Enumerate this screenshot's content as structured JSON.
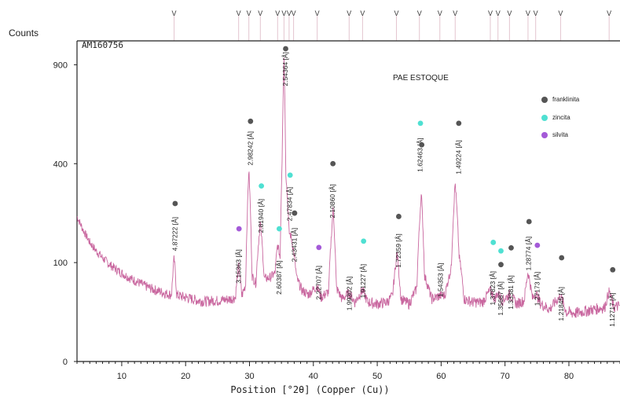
{
  "chart_data": {
    "type": "line",
    "ylabel": "Counts",
    "xlabel": "Position [°2θ] (Copper (Cu))",
    "sample_id": "AM160756",
    "title": "PAE ESTOQUE",
    "xlim": [
      3,
      88
    ],
    "ylim": [
      0,
      1000
    ],
    "y_scale": "sqrt",
    "x_ticks": [
      10,
      20,
      30,
      40,
      50,
      60,
      70,
      80
    ],
    "y_ticks": [
      0,
      100,
      400,
      900
    ],
    "colors": {
      "pattern": "#c9679f",
      "frame": "#222222",
      "franklinita": "#555555",
      "zincita": "#4fe0d2",
      "silvita": "#a45ad8"
    },
    "legend": [
      {
        "name": "franklinita",
        "marker": "franklinita"
      },
      {
        "name": "zincita",
        "marker": "zincita"
      },
      {
        "name": "silvita",
        "marker": "silvita"
      }
    ],
    "reference_ticks": [
      18.2,
      28.3,
      29.9,
      31.7,
      34.4,
      35.4,
      36.2,
      36.9,
      40.6,
      45.6,
      47.7,
      53.0,
      56.6,
      59.8,
      62.2,
      67.7,
      68.9,
      70.7,
      73.6,
      74.8,
      78.7,
      86.3
    ],
    "pattern_points": [
      [
        3,
        215
      ],
      [
        4,
        175
      ],
      [
        5,
        145
      ],
      [
        6,
        125
      ],
      [
        7,
        110
      ],
      [
        8,
        97
      ],
      [
        9,
        88
      ],
      [
        10,
        80
      ],
      [
        11,
        73
      ],
      [
        12,
        67
      ],
      [
        13,
        62
      ],
      [
        14,
        57
      ],
      [
        15,
        53
      ],
      [
        16,
        50
      ],
      [
        17,
        47
      ],
      [
        17.8,
        46
      ],
      [
        18.2,
        110
      ],
      [
        18.6,
        46
      ],
      [
        19,
        44
      ],
      [
        20,
        42
      ],
      [
        21,
        40
      ],
      [
        22,
        38
      ],
      [
        23,
        37
      ],
      [
        24,
        38
      ],
      [
        25,
        38
      ],
      [
        26,
        39
      ],
      [
        27,
        40
      ],
      [
        27.8,
        42
      ],
      [
        28.3,
        95
      ],
      [
        28.8,
        44
      ],
      [
        29.4,
        60
      ],
      [
        29.9,
        380
      ],
      [
        30.4,
        75
      ],
      [
        31,
        62
      ],
      [
        31.7,
        200
      ],
      [
        32.3,
        70
      ],
      [
        33.2,
        72
      ],
      [
        34,
        80
      ],
      [
        34.4,
        140
      ],
      [
        34.8,
        110
      ],
      [
        35.1,
        420
      ],
      [
        35.4,
        950
      ],
      [
        35.7,
        360
      ],
      [
        36.2,
        170
      ],
      [
        36.5,
        160
      ],
      [
        36.9,
        125
      ],
      [
        37.4,
        70
      ],
      [
        38.2,
        52
      ],
      [
        39.2,
        46
      ],
      [
        40.6,
        58
      ],
      [
        41.2,
        42
      ],
      [
        42.4,
        50
      ],
      [
        43.1,
        240
      ],
      [
        43.6,
        55
      ],
      [
        44.5,
        40
      ],
      [
        45.6,
        48
      ],
      [
        46.5,
        36
      ],
      [
        47.7,
        52
      ],
      [
        48.5,
        36
      ],
      [
        50,
        34
      ],
      [
        51.5,
        36
      ],
      [
        52.4,
        44
      ],
      [
        53.1,
        120
      ],
      [
        53.7,
        40
      ],
      [
        55,
        34
      ],
      [
        56.2,
        55
      ],
      [
        56.9,
        290
      ],
      [
        57.4,
        75
      ],
      [
        58.5,
        40
      ],
      [
        59.8,
        44
      ],
      [
        60.6,
        45
      ],
      [
        61.6,
        90
      ],
      [
        62.2,
        330
      ],
      [
        62.8,
        115
      ],
      [
        63.6,
        40
      ],
      [
        65,
        36
      ],
      [
        66.5,
        36
      ],
      [
        67.7,
        52
      ],
      [
        68.4,
        40
      ],
      [
        68.9,
        48
      ],
      [
        69.6,
        38
      ],
      [
        70.7,
        46
      ],
      [
        71.8,
        34
      ],
      [
        73,
        38
      ],
      [
        73.6,
        82
      ],
      [
        74.3,
        40
      ],
      [
        74.8,
        48
      ],
      [
        75.6,
        34
      ],
      [
        77,
        28
      ],
      [
        78.7,
        44
      ],
      [
        79.6,
        25
      ],
      [
        81,
        24
      ],
      [
        82.5,
        26
      ],
      [
        84,
        28
      ],
      [
        85.6,
        30
      ],
      [
        86.3,
        50
      ],
      [
        87,
        30
      ],
      [
        88,
        32
      ]
    ],
    "peak_labels": [
      {
        "x": 18.3,
        "y_top": 200,
        "text": "4.87222 [Å]",
        "marker": "franklinita",
        "marker_y": 255
      },
      {
        "x": 28.3,
        "y_top": 118,
        "text": "3.15363 [Å]",
        "marker": "silvita",
        "marker_y": 180
      },
      {
        "x": 30.1,
        "y_top": 520,
        "text": "2.98242 [Å]",
        "marker": "franklinita",
        "marker_y": 590
      },
      {
        "x": 31.8,
        "y_top": 255,
        "text": "2.81940 [Å]",
        "marker": "zincita",
        "marker_y": 315
      },
      {
        "x": 34.6,
        "y_top": 95,
        "text": "2.60387 [Å]",
        "marker": "zincita",
        "marker_y": 180
      },
      {
        "x": 35.6,
        "y_top": 950,
        "text": "2.54364 [Å]",
        "marker": "franklinita",
        "marker_y": 1000
      },
      {
        "x": 36.3,
        "y_top": 295,
        "text": "2.47834 [Å]",
        "marker": "zincita",
        "marker_y": 355
      },
      {
        "x": 37.0,
        "y_top": 170,
        "text": "2.43431 [Å]",
        "marker": "franklinita",
        "marker_y": 225
      },
      {
        "x": 40.8,
        "y_top": 85,
        "text": "2.22707 [Å]",
        "marker": "silvita",
        "marker_y": 133
      },
      {
        "x": 43.0,
        "y_top": 305,
        "text": "2.10860 [Å]",
        "marker": "franklinita",
        "marker_y": 400
      },
      {
        "x": 45.6,
        "y_top": 66,
        "text": "1.99302 [Å]",
        "marker": null,
        "marker_y": null
      },
      {
        "x": 47.8,
        "y_top": 88,
        "text": "1.91227 [Å]",
        "marker": "zincita",
        "marker_y": 148
      },
      {
        "x": 53.3,
        "y_top": 155,
        "text": "1.72359 [Å]",
        "marker": "franklinita",
        "marker_y": 215
      },
      {
        "x": 56.7,
        "y_top": 490,
        "text": "1.62463 [Å]",
        "marker": "zincita",
        "marker_y": 580
      },
      {
        "x": 56.9,
        "y_top": 0,
        "text": "",
        "marker": "franklinita",
        "marker_y": 480
      },
      {
        "x": 59.9,
        "y_top": 90,
        "text": "1.54353 [Å]",
        "marker": null,
        "marker_y": null
      },
      {
        "x": 62.7,
        "y_top": 480,
        "text": "1.49224 [Å]",
        "marker": "franklinita",
        "marker_y": 580
      },
      {
        "x": 68.1,
        "y_top": 75,
        "text": "1.37823 [Å]",
        "marker": "zincita",
        "marker_y": 145
      },
      {
        "x": 69.3,
        "y_top": 58,
        "text": "1.35687 [Å]",
        "marker": "zincita",
        "marker_y": 125
      },
      {
        "x": 69.3,
        "y_top": 0,
        "text": "",
        "marker": "franklinita",
        "marker_y": 96
      },
      {
        "x": 70.9,
        "y_top": 68,
        "text": "1.33381 [Å]",
        "marker": "franklinita",
        "marker_y": 132
      },
      {
        "x": 73.7,
        "y_top": 148,
        "text": "1.28774 [Å]",
        "marker": "franklinita",
        "marker_y": 200
      },
      {
        "x": 75.0,
        "y_top": 74,
        "text": "1.27173 [Å]",
        "marker": "silvita",
        "marker_y": 138
      },
      {
        "x": 78.8,
        "y_top": 50,
        "text": "1.21845 [Å]",
        "marker": "franklinita",
        "marker_y": 110
      },
      {
        "x": 86.8,
        "y_top": 42,
        "text": "1.12717 [Å]",
        "marker": "franklinita",
        "marker_y": 86
      }
    ]
  }
}
